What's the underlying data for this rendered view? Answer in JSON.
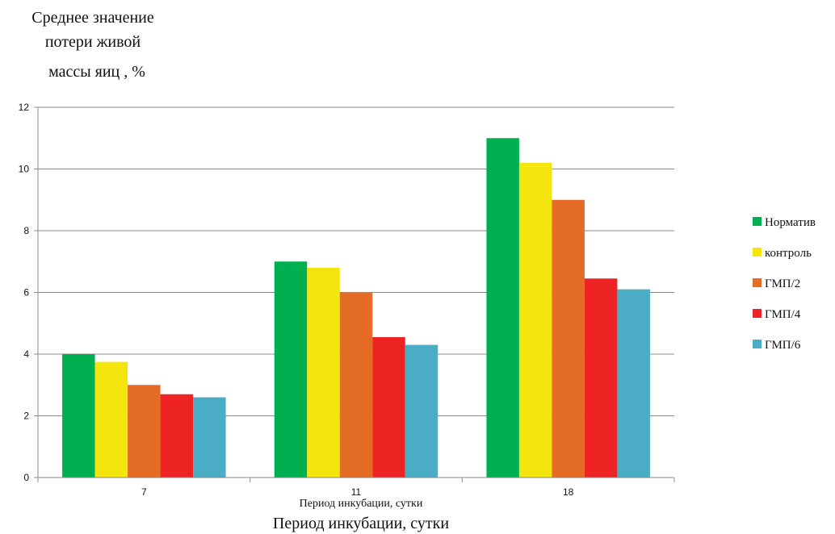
{
  "chart_data": {
    "type": "bar",
    "ylabel_lines": [
      "Среднее значение",
      "потери живой",
      "массы яиц , %"
    ],
    "xlabel_inner": "Период инкубации, сутки",
    "xlabel": "Период инкубации,  сутки",
    "categories": [
      "7",
      "11",
      "18"
    ],
    "ylim": [
      0,
      12
    ],
    "yticks": [
      0,
      2,
      4,
      6,
      8,
      10,
      12
    ],
    "grid": true,
    "legend_position": "right",
    "series": [
      {
        "name": "Норматив",
        "color": "#00b050",
        "values": [
          4.0,
          7.0,
          11.0
        ]
      },
      {
        "name": "контроль",
        "color": "#f5e50f",
        "values": [
          3.75,
          6.8,
          10.2
        ]
      },
      {
        "name": "ГМП/2",
        "color": "#e46c24",
        "values": [
          3.0,
          6.0,
          9.0
        ]
      },
      {
        "name": "ГМП/4",
        "color": "#ee2424",
        "values": [
          2.7,
          4.55,
          6.45
        ]
      },
      {
        "name": "ГМП/6",
        "color": "#4bacc6",
        "values": [
          2.6,
          4.3,
          6.1
        ]
      }
    ]
  }
}
